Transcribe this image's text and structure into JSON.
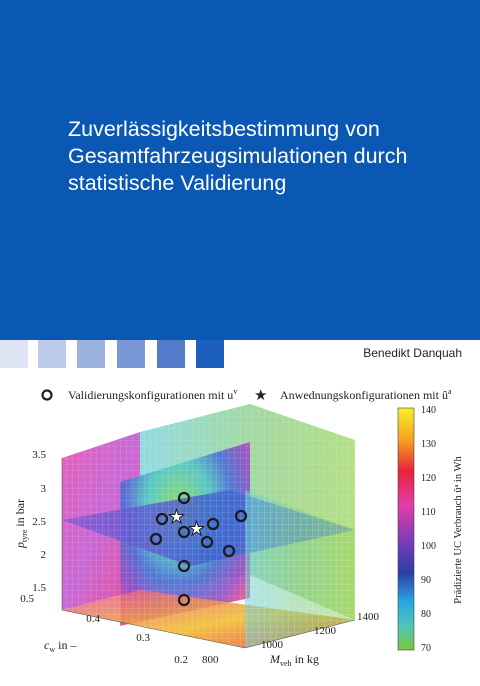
{
  "cover": {
    "title_lines": [
      "Zuverlässigkeitsbestimmung von",
      "Gesamtfahrzeugsimulationen durch",
      "statistische Validierung"
    ],
    "author": "Benedikt Danquah",
    "band_color": "#0a58b4",
    "swatch_colors": [
      "#dde5f4",
      "#bccbeb",
      "#9bb1e0",
      "#7a97d6",
      "#547ccb",
      "#1d5fbf"
    ]
  },
  "figure": {
    "legend": {
      "validation_label": "Validierungskonfigurationen mit u",
      "validation_sup": "v",
      "application_label": "Anwednungskonfigurationen mit û",
      "application_sup": "a"
    },
    "colorbar": {
      "label": "Prädizierte UC Verbrauch ûᵃ in Wh",
      "ticks": [
        "140",
        "130",
        "120",
        "110",
        "100",
        "90",
        "80",
        "70"
      ]
    },
    "axes": {
      "y_label": "p",
      "y_sub": "tyre",
      "y_unit": " in bar",
      "y_ticks": [
        "3.5",
        "3",
        "2.5",
        "2",
        "1.5"
      ],
      "c_label": "c",
      "c_sub": "w",
      "c_unit": " in –",
      "c_ticks": [
        "0.5",
        "0.4",
        "0.3",
        "0.2"
      ],
      "m_label": "M",
      "m_sub": "veh",
      "m_unit": " in kg",
      "m_ticks": [
        "800",
        "1000",
        "1200",
        "1400"
      ]
    }
  }
}
